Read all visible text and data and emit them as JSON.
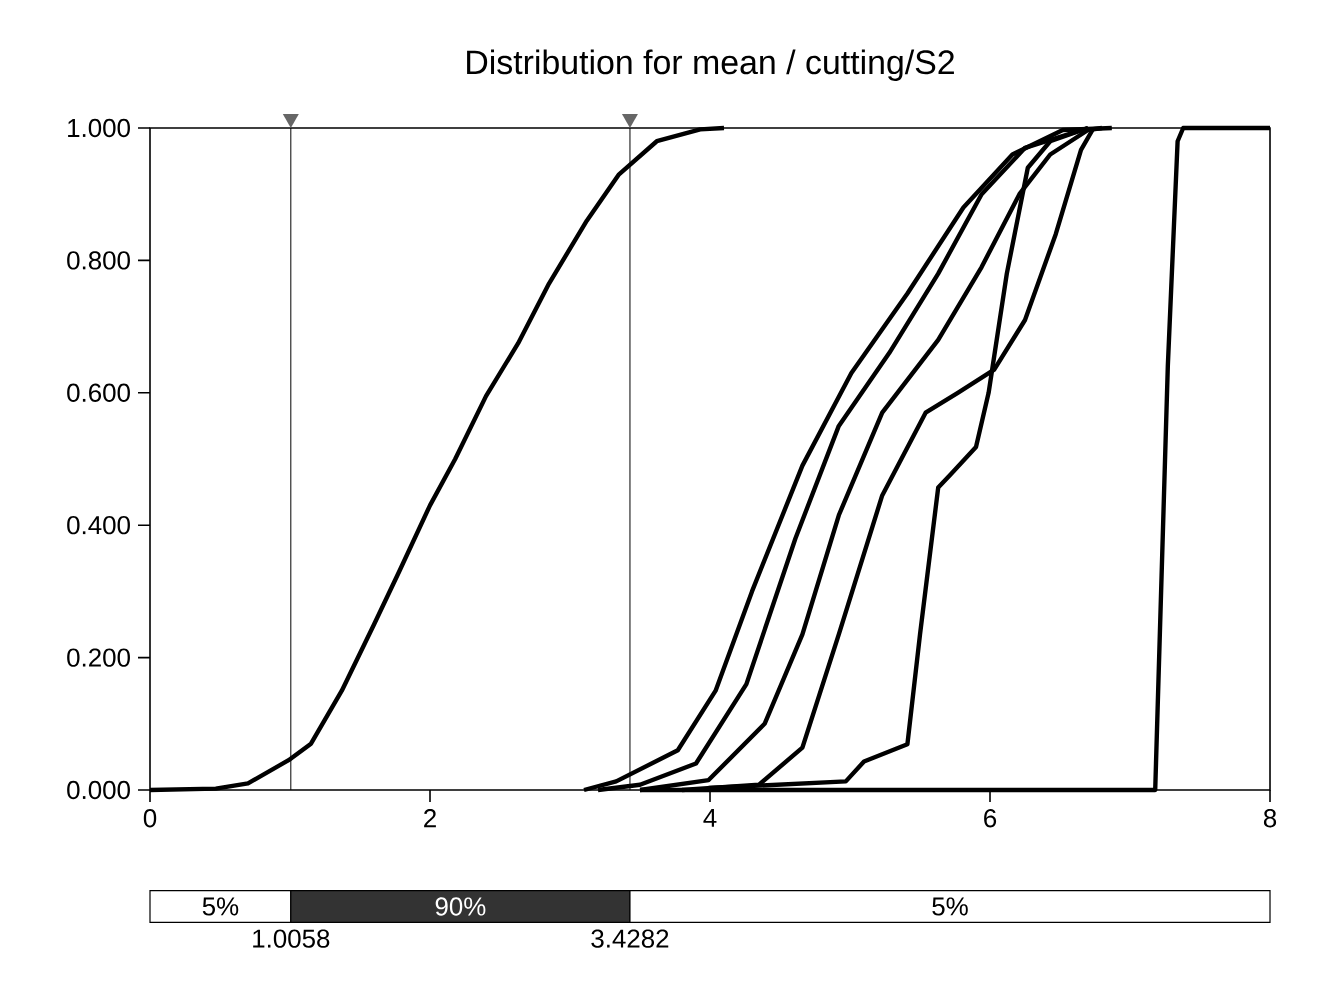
{
  "chart_data": {
    "type": "line",
    "title": "Distribution for mean / cutting/S2",
    "xlim": [
      0,
      8
    ],
    "xticks": [
      0,
      2,
      4,
      6,
      8
    ],
    "ylim": [
      0,
      1
    ],
    "yticks": [
      {
        "value": 0,
        "label": "0.000"
      },
      {
        "value": 0.2,
        "label": "0.200"
      },
      {
        "value": 0.4,
        "label": "0.400"
      },
      {
        "value": 0.6,
        "label": "0.600"
      },
      {
        "value": 0.8,
        "label": "0.800"
      },
      {
        "value": 1,
        "label": "1.000"
      }
    ],
    "marker": "none",
    "line_style": "solid",
    "grid": false,
    "series": [
      {
        "color": "#000000",
        "x": [
          0,
          0.47,
          0.7,
          0.99,
          1.15,
          1.37,
          1.6,
          1.78,
          2.0,
          2.18,
          2.4,
          2.63,
          2.85,
          3.12,
          3.35,
          3.62,
          3.93,
          4.1
        ],
        "values": [
          0,
          0.002,
          0.01,
          0.045,
          0.07,
          0.15,
          0.25,
          0.33,
          0.43,
          0.5,
          0.595,
          0.675,
          0.765,
          0.86,
          0.93,
          0.98,
          0.998,
          1
        ]
      },
      {
        "color": "#000000",
        "x": [
          3.1,
          3.33,
          3.77,
          4.04,
          4.3,
          4.66,
          5.01,
          5.41,
          5.81,
          6.16,
          6.52,
          6.87
        ],
        "values": [
          0,
          0.013,
          0.06,
          0.15,
          0.3,
          0.49,
          0.63,
          0.75,
          0.88,
          0.96,
          0.997,
          1
        ]
      },
      {
        "color": "#000000",
        "x": [
          3.2,
          3.5,
          3.9,
          4.26,
          4.61,
          4.92,
          5.28,
          5.63,
          5.94,
          6.25,
          6.7
        ],
        "values": [
          0,
          0.008,
          0.04,
          0.16,
          0.38,
          0.55,
          0.66,
          0.78,
          0.9,
          0.97,
          1
        ]
      },
      {
        "color": "#000000",
        "x": [
          3.5,
          3.99,
          4.39,
          4.66,
          4.92,
          5.23,
          5.63,
          5.94,
          6.21,
          6.43,
          6.7,
          6.8
        ],
        "values": [
          0,
          0.015,
          0.1,
          0.235,
          0.415,
          0.57,
          0.68,
          0.79,
          0.9,
          0.96,
          0.997,
          1
        ]
      },
      {
        "color": "#000000",
        "x": [
          3.8,
          4.35,
          4.66,
          4.92,
          5.23,
          5.54,
          5.77,
          6.03,
          6.25,
          6.47,
          6.65,
          6.74
        ],
        "values": [
          0,
          0.008,
          0.064,
          0.235,
          0.445,
          0.57,
          0.6,
          0.635,
          0.71,
          0.84,
          0.967,
          1
        ]
      },
      {
        "color": "#000000",
        "x": [
          3.99,
          4.97,
          5.1,
          5.41,
          5.5,
          5.63,
          5.72,
          5.9,
          5.99,
          6.12,
          6.27,
          6.43,
          6.7
        ],
        "values": [
          0.003,
          0.013,
          0.043,
          0.069,
          0.235,
          0.457,
          0.477,
          0.518,
          0.6,
          0.78,
          0.94,
          0.98,
          1
        ]
      },
      {
        "color": "#000000",
        "x": [
          3.5,
          7.18,
          7.27,
          7.34,
          7.38,
          8
        ],
        "values": [
          0,
          0,
          0.64,
          0.98,
          1,
          1
        ]
      }
    ],
    "ref_lines": [
      {
        "axis": "x",
        "value": 1.0058,
        "color": "#000000"
      },
      {
        "axis": "x",
        "value": 3.4282,
        "color": "#000000"
      }
    ],
    "annotations": [
      "5%",
      "90%",
      "5%",
      "1.0058",
      "3.4282"
    ]
  }
}
